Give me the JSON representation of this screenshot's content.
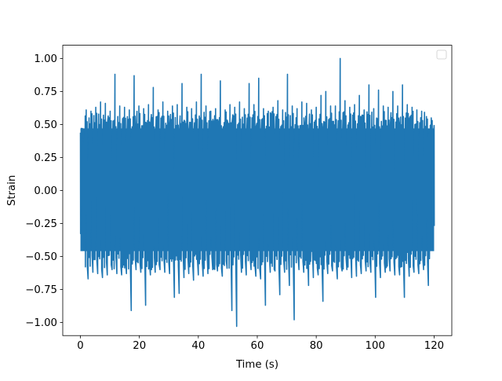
{
  "chart_data": {
    "type": "line",
    "title": "",
    "xlabel": "Time (s)",
    "ylabel": "Strain",
    "xlim": [
      -6,
      126
    ],
    "ylim": [
      -1.1,
      1.1
    ],
    "xticks": [
      0,
      20,
      40,
      60,
      80,
      100,
      120
    ],
    "xtick_labels": [
      "0",
      "20",
      "40",
      "60",
      "80",
      "100",
      "120"
    ],
    "yticks": [
      -1.0,
      -0.75,
      -0.5,
      -0.25,
      0.0,
      0.25,
      0.5,
      0.75,
      1.0
    ],
    "ytick_labels": [
      "−1.00",
      "−0.75",
      "−0.50",
      "−0.25",
      "0.00",
      "0.25",
      "0.50",
      "0.75",
      "1.00"
    ],
    "grid": false,
    "legend": {
      "placement": "upper right",
      "entries": []
    },
    "series": [
      {
        "color": "#1f77b4",
        "x_range": [
          0,
          120
        ],
        "envelope_min": [
          -0.38,
          -0.67,
          -0.62,
          -0.63,
          -0.66,
          -0.64,
          -0.6,
          -0.63,
          -0.64,
          -0.63,
          -0.91,
          -0.6,
          -0.62,
          -0.87,
          -0.64,
          -0.62,
          -0.6,
          -0.62,
          -0.63,
          -0.81,
          -0.78,
          -0.66,
          -0.63,
          -0.68,
          -0.64,
          -0.65,
          -0.63,
          -0.6,
          -0.61,
          -0.65,
          -0.59,
          -0.91,
          -1.03,
          -0.62,
          -0.64,
          -0.6,
          -0.65,
          -0.67,
          -0.87,
          -0.62,
          -0.61,
          -0.79,
          -0.62,
          -0.72,
          -0.98,
          -0.6,
          -0.62,
          -0.72,
          -0.66,
          -0.64,
          -0.84,
          -0.63,
          -0.61,
          -0.67,
          -0.61,
          -0.6,
          -0.66,
          -0.65,
          -0.63,
          -0.61,
          -0.62,
          -0.81,
          -0.66,
          -0.62,
          -0.61,
          -0.64,
          -0.64,
          -0.81,
          -0.65,
          -0.62,
          -0.63,
          -0.6,
          -0.72,
          -0.3
        ],
        "envelope_max": [
          0.47,
          0.61,
          0.6,
          0.63,
          0.67,
          0.66,
          0.6,
          0.88,
          0.64,
          0.63,
          0.61,
          0.87,
          0.64,
          0.62,
          0.65,
          0.78,
          0.61,
          0.67,
          0.6,
          0.64,
          0.65,
          0.81,
          0.63,
          0.62,
          0.67,
          0.88,
          0.64,
          0.6,
          0.62,
          0.83,
          0.61,
          0.65,
          0.63,
          0.67,
          0.62,
          0.81,
          0.65,
          0.85,
          0.62,
          0.6,
          0.63,
          0.68,
          0.61,
          0.88,
          0.64,
          0.62,
          0.67,
          0.66,
          0.61,
          0.63,
          0.72,
          0.75,
          0.64,
          0.64,
          1.0,
          0.68,
          0.63,
          0.65,
          0.72,
          0.61,
          0.8,
          0.62,
          0.76,
          0.64,
          0.63,
          0.75,
          0.64,
          0.8,
          0.65,
          0.63,
          0.61,
          0.6,
          0.56,
          0.55
        ]
      }
    ]
  }
}
